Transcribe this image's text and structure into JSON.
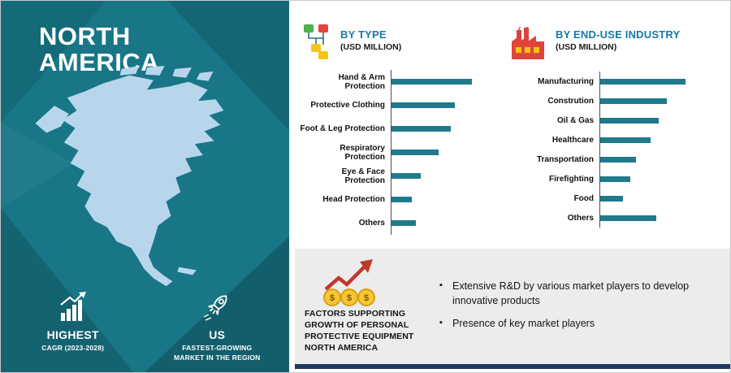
{
  "left_panel": {
    "title_lines": [
      "NORTH",
      "AMERICA"
    ],
    "map": "north-america-silhouette",
    "stats": [
      {
        "icon": "growth-bars-icon",
        "title": "HIGHEST",
        "subtitle": "CAGR (2023-2028)"
      },
      {
        "icon": "rocket-icon",
        "title": "US",
        "subtitle": "FASTEST-GROWING MARKET IN THE REGION"
      }
    ]
  },
  "chart_data": [
    {
      "type": "bar",
      "orientation": "horizontal",
      "icon": "sitemap-icon",
      "title": "BY TYPE",
      "subtitle": "(USD MILLION)",
      "categories": [
        "Hand & Arm Protection",
        "Protective Clothing",
        "Foot & Leg Protection",
        "Respiratory Protection",
        "Eye & Face Protection",
        "Head Protection",
        "Others"
      ],
      "values": [
        99,
        78,
        73,
        58,
        36,
        25,
        30
      ],
      "values_note": "relative bar lengths; no numeric axis labels shown",
      "bar_color": "#1f7a8c",
      "legend": "none",
      "grid": "off"
    },
    {
      "type": "bar",
      "orientation": "horizontal",
      "icon": "factory-icon",
      "title": "BY END-USE INDUSTRY",
      "subtitle": "(USD MILLION)",
      "categories": [
        "Manufacturing",
        "Constrution",
        "Oil & Gas",
        "Healthcare",
        "Transportation",
        "Firefighting",
        "Food",
        "Others"
      ],
      "values": [
        105,
        82,
        72,
        62,
        44,
        37,
        28,
        69
      ],
      "values_note": "relative bar lengths; no numeric axis labels shown",
      "bar_color": "#1f7a8c",
      "legend": "none",
      "grid": "off"
    }
  ],
  "factors": {
    "icon": "coins-growth-icon",
    "heading": "FACTORS SUPPORTING GROWTH OF PERSONAL PROTECTIVE EQUIPMENT NORTH AMERICA",
    "bullets": [
      "Extensive R&D by various market players to develop innovative products",
      "Presence of key market players"
    ]
  },
  "colors": {
    "panel_teal": "#187687",
    "bar_teal": "#1f7a8c",
    "header_teal": "#1779a8",
    "factors_bg": "#ececec",
    "bottom_strip_navy": "#1f3864",
    "map_blue": "#b7d6ec"
  }
}
